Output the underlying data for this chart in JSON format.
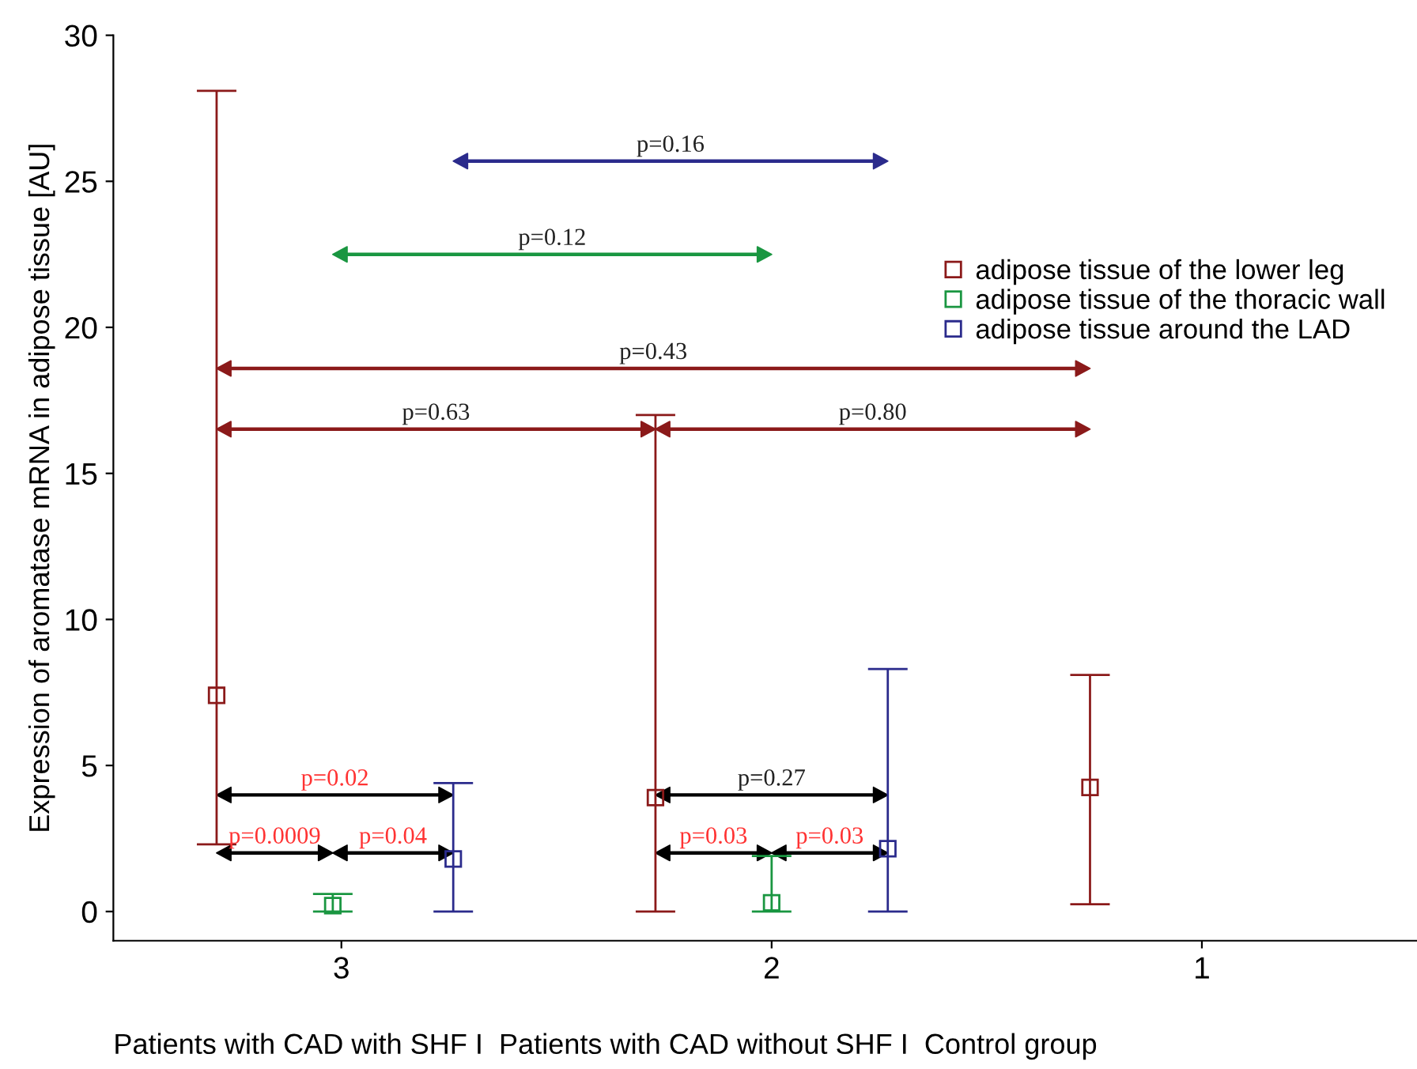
{
  "chart_data": {
    "type": "scatter",
    "ylabel": "Expression of aromatase mRNA in adipose tissue [AU]",
    "xlabel": "Patients with CAD with SHF I  Patients with CAD without SHF I  Control group",
    "xlim": [
      3.53,
      0.5
    ],
    "xticks": [
      3,
      2,
      1
    ],
    "ylim": [
      -1,
      30
    ],
    "yticks": [
      0,
      5,
      10,
      15,
      20,
      25,
      30
    ],
    "marker": "square",
    "grid": false,
    "legend": "top right",
    "series": [
      {
        "name": "adipose tissue of the lower leg",
        "color": "#8b1a1a",
        "x": [
          3.29,
          2.27,
          1.26
        ],
        "values": [
          7.4,
          3.9,
          4.25
        ],
        "errors": [
          [
            2.3,
            28.1
          ],
          [
            0,
            17.0
          ],
          [
            0.25,
            8.1
          ]
        ]
      },
      {
        "name": "adipose tissue of the thoracic wall",
        "color": "#1a9641",
        "x": [
          3.02,
          2.0
        ],
        "values": [
          0.2,
          0.3
        ],
        "errors": [
          [
            0,
            0.6
          ],
          [
            0,
            1.9
          ]
        ]
      },
      {
        "name": "adipose tissue around the LAD",
        "color": "#2b2b8c",
        "x": [
          2.74,
          1.73
        ],
        "values": [
          1.8,
          2.15
        ],
        "errors": [
          [
            0,
            4.4
          ],
          [
            0,
            8.3
          ]
        ]
      }
    ],
    "annotations": [
      "p=0.16",
      "p=0.12",
      "p=0.43",
      "p=0.63",
      "p=0.80",
      "p=0.02",
      "p=0.27",
      "p=0.0009",
      "p=0.04",
      "p=0.03",
      "p=0.03"
    ]
  }
}
